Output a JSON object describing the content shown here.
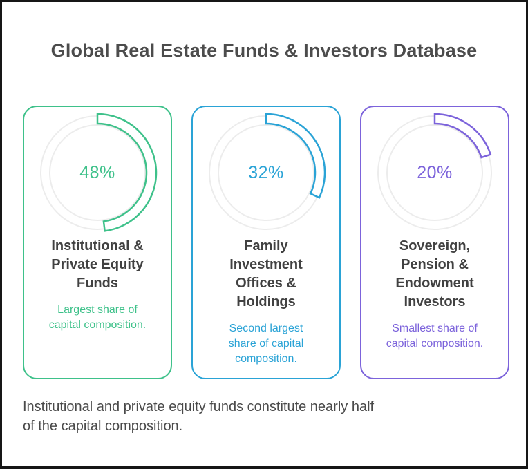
{
  "header": {
    "title": "Global Real Estate Funds & Investors Database"
  },
  "theme": {
    "ring_color": "#ECECEC",
    "frame_border": "#161616"
  },
  "cards": [
    {
      "percent": 48,
      "percent_label": "48%",
      "color": "#3EC18A",
      "title": "Institutional &\nPrivate Equity\nFunds",
      "subtitle": "Largest share of\ncapital composition."
    },
    {
      "percent": 32,
      "percent_label": "32%",
      "color": "#2AA3D6",
      "title": "Family\nInvestment\nOffices &\nHoldings",
      "subtitle": "Second largest\nshare of capital\ncomposition."
    },
    {
      "percent": 20,
      "percent_label": "20%",
      "color": "#7C63DB",
      "title": "Sovereign,\nPension &\nEndowment\nInvestors",
      "subtitle": "Smallest share of\ncapital composition."
    }
  ],
  "footer": {
    "caption": "Institutional and private equity funds constitute nearly half\nof the capital composition."
  },
  "chart_data": {
    "type": "donut",
    "title": "Global Real Estate Funds & Investors Database",
    "unit": "%",
    "arc_start": "12 o'clock, clockwise",
    "series": [
      {
        "label": "Institutional & Private Equity Funds",
        "value": 48,
        "color": "#3EC18A",
        "annotation": "Largest share of capital composition."
      },
      {
        "label": "Family Investment Offices & Holdings",
        "value": 32,
        "color": "#2AA3D6",
        "annotation": "Second largest share of capital composition."
      },
      {
        "label": "Sovereign, Pension & Endowment Investors",
        "value": 20,
        "color": "#7C63DB",
        "annotation": "Smallest share of capital composition."
      }
    ],
    "footnote": "Institutional and private equity funds constitute nearly half of the capital composition."
  }
}
